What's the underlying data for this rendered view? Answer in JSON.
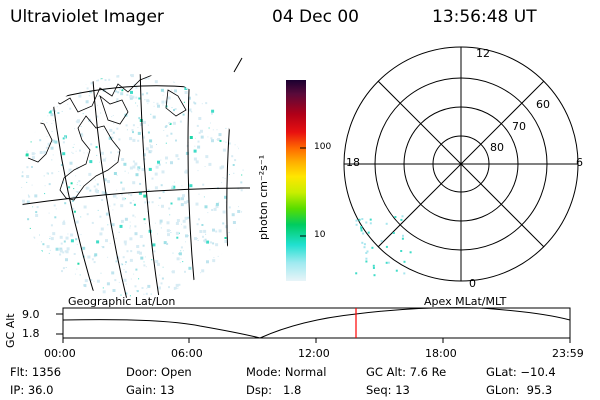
{
  "header": {
    "instrument": "Ultraviolet Imager",
    "date": "04 Dec 00",
    "time": "13:56:48 UT"
  },
  "colorbar": {
    "unit_label": "photon cm⁻²s⁻¹",
    "tick_labels": [
      "100",
      "10"
    ]
  },
  "polar_plot": {
    "mlt_labels": {
      "top": "12",
      "left": "18",
      "right": "6",
      "bottom": "0"
    },
    "lat_labels": [
      "60",
      "70",
      "80"
    ]
  },
  "timeline": {
    "left_caption": "Geographic Lat/Lon",
    "right_caption": "Apex MLat/MLT",
    "y_axis_label": "GC Alt",
    "y_ticks": [
      "9.0",
      "1.8"
    ],
    "x_ticks": [
      "00:00",
      "06:00",
      "12:00",
      "18:00",
      "23:59"
    ],
    "current_time_marker": "13:56:48",
    "marker_color": "#ff0000"
  },
  "info": {
    "row1": {
      "flt": "Flt: 1356",
      "door": "Door: Open",
      "mode": "Mode: Normal",
      "gc_alt": "GC Alt: 7.6 Re",
      "glat": "GLat: −10.4"
    },
    "row2": {
      "ip": "IP: 36.0",
      "gain": "Gain: 13",
      "dsp": "Dsp:   1.8",
      "seq": "Seq: 13",
      "glon": "GLon:  95.3"
    }
  }
}
